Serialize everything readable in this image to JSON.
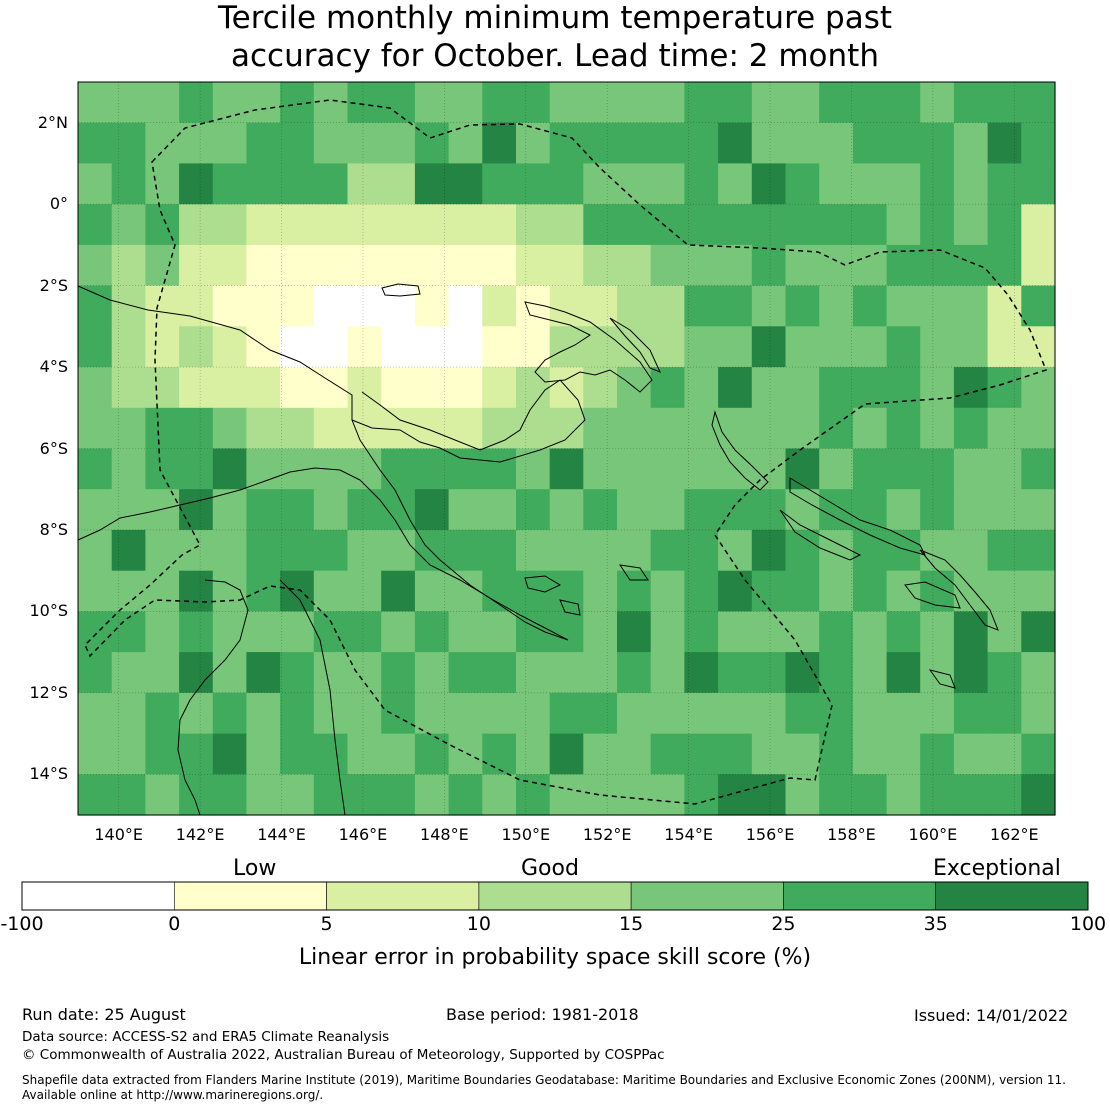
{
  "title_line1": "Tercile monthly minimum temperature past",
  "title_line2": "accuracy for October. Lead time: 2 month",
  "map": {
    "lon_range": [
      139,
      163
    ],
    "lat_range": [
      -15,
      3
    ],
    "lat_ticks": [
      "2°N",
      "0°",
      "2°S",
      "4°S",
      "6°S",
      "8°S",
      "10°S",
      "12°S",
      "14°S"
    ],
    "lon_ticks": [
      "140°E",
      "142°E",
      "144°E",
      "146°E",
      "148°E",
      "150°E",
      "152°E",
      "154°E",
      "156°E",
      "158°E",
      "160°E",
      "162°E"
    ],
    "grid": true,
    "region": "Papua New Guinea"
  },
  "legend": {
    "categories": [
      "Low",
      "Good",
      "Exceptional"
    ],
    "ticks": [
      "-100",
      "0",
      "5",
      "10",
      "15",
      "25",
      "35",
      "100"
    ],
    "colors": [
      "#ffffff",
      "#ffffcc",
      "#d9f0a3",
      "#addd8e",
      "#78c679",
      "#41ab5d",
      "#238443"
    ],
    "title": "Linear error in probability space skill score (%)"
  },
  "footer": {
    "run_date": "Run date: 25 August",
    "base_period": "Base period: 1981-2018",
    "issued": "Issued: 14/01/2022",
    "data_source": "Data source: ACCESS-S2 and ERA5 Climate Reanalysis",
    "copyright": "© Commonwealth of Australia 2022, Australian Bureau of Meteorology, Supported by COSPPac",
    "shapefile_line1": "Shapefile data extracted from Flanders Marine Institute (2019), Maritime Boundaries Geodatabase: Maritime Boundaries and Exclusive Economic Zones (200NM), version 11.",
    "shapefile_line2": "Available online at http://www.marineregions.org/."
  }
}
